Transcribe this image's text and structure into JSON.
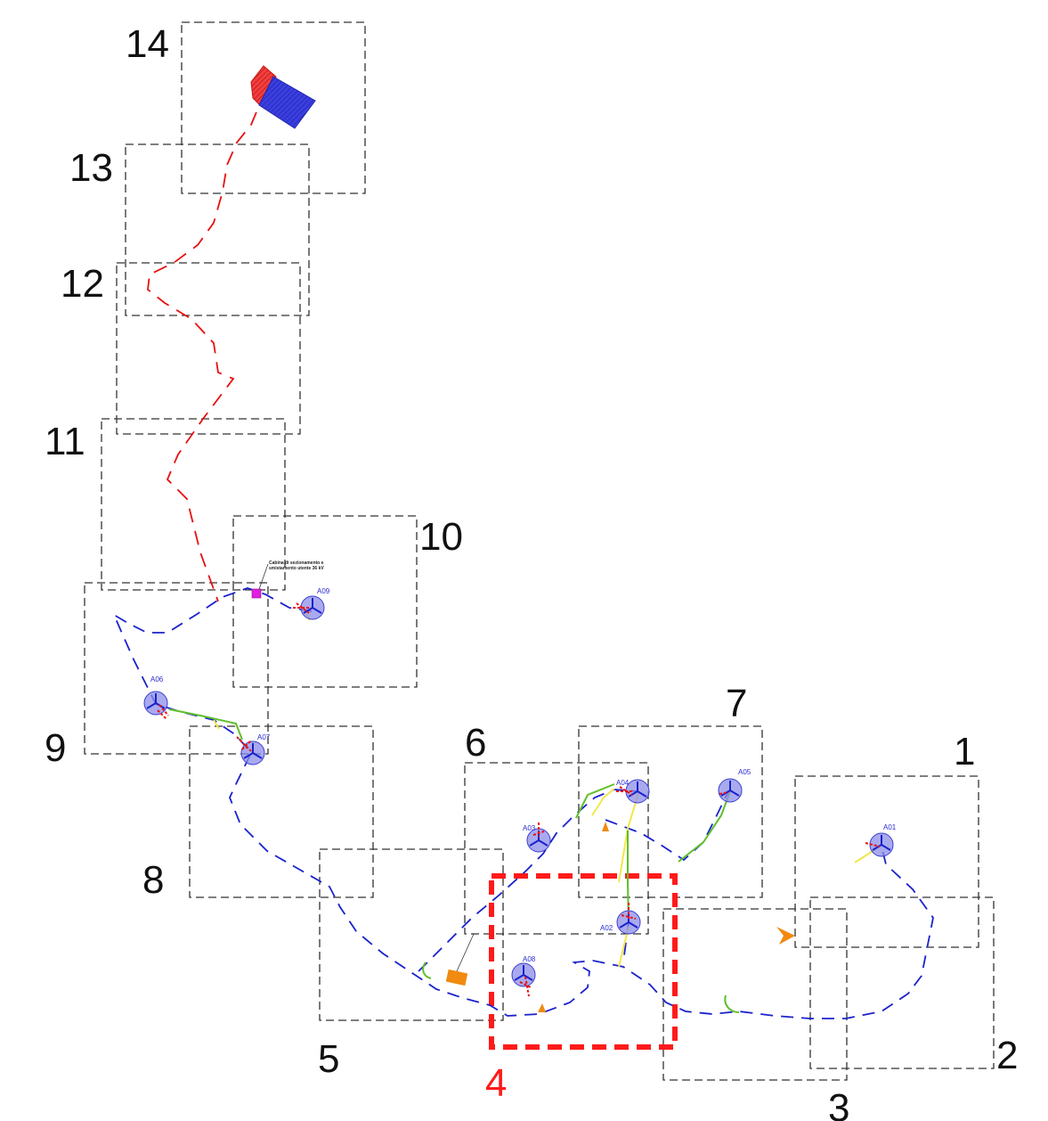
{
  "tiles": [
    {
      "id": "1",
      "label": "1"
    },
    {
      "id": "2",
      "label": "2"
    },
    {
      "id": "3",
      "label": "3"
    },
    {
      "id": "4",
      "label": "4",
      "highlighted": true
    },
    {
      "id": "5",
      "label": "5"
    },
    {
      "id": "6",
      "label": "6"
    },
    {
      "id": "7",
      "label": "7"
    },
    {
      "id": "8",
      "label": "8"
    },
    {
      "id": "9",
      "label": "9"
    },
    {
      "id": "10",
      "label": "10"
    },
    {
      "id": "11",
      "label": "11"
    },
    {
      "id": "12",
      "label": "12"
    },
    {
      "id": "13",
      "label": "13"
    },
    {
      "id": "14",
      "label": "14"
    }
  ],
  "turbines": [
    {
      "id": "A01",
      "label": "A01"
    },
    {
      "id": "A02",
      "label": "A02"
    },
    {
      "id": "A03",
      "label": "A03"
    },
    {
      "id": "A04",
      "label": "A04"
    },
    {
      "id": "A05",
      "label": "A05"
    },
    {
      "id": "A06",
      "label": "A06"
    },
    {
      "id": "A07",
      "label": "A07"
    },
    {
      "id": "A08",
      "label": "A08"
    },
    {
      "id": "A09",
      "label": "A09"
    }
  ],
  "cabina": {
    "line1": "Cabina di sezionamento e",
    "line2": "smistamento utente 36 kV"
  },
  "colors": {
    "highlight": "#ff1a1a",
    "cable_route": "#1a22cc",
    "connection_route": "#e81010",
    "turbine": "#8c8ee8",
    "substation_fill": "#3b3fe0",
    "access_road": "#f2e64a",
    "road_alt": "#5fbf2a",
    "cabina": "#e020e0",
    "marker": "#f08a10"
  }
}
